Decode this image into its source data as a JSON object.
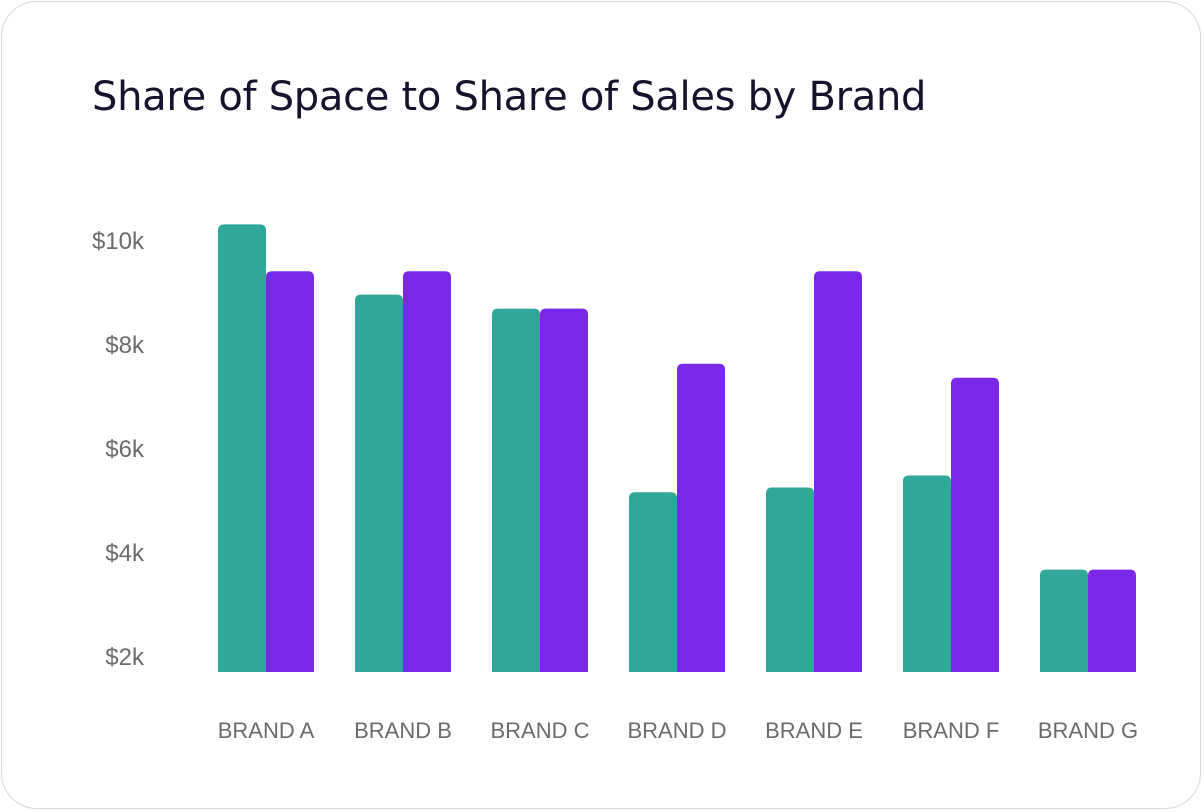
{
  "chart_data": {
    "type": "bar",
    "title": "Share of Space to Share of Sales by Brand",
    "xlabel": "",
    "ylabel": "",
    "categories": [
      "BRAND A",
      "BRAND B",
      "BRAND C",
      "BRAND D",
      "BRAND E",
      "BRAND F",
      "BRAND G"
    ],
    "series": [
      {
        "values": [
          10300,
          8950,
          8680,
          5150,
          5240,
          5470,
          3660
        ],
        "color": "#31a69b"
      },
      {
        "values": [
          9400,
          9400,
          8680,
          7620,
          9400,
          7350,
          3660
        ],
        "color": "#7828e6"
      }
    ],
    "yticks": [
      {
        "value": 2000,
        "label": "$2k"
      },
      {
        "value": 4000,
        "label": "$4k"
      },
      {
        "value": 6000,
        "label": "$6k"
      },
      {
        "value": 8000,
        "label": "$8k"
      },
      {
        "value": 10000,
        "label": "$10k"
      }
    ],
    "ylim": [
      2000,
      10000
    ],
    "grid": false,
    "legend": "none"
  }
}
